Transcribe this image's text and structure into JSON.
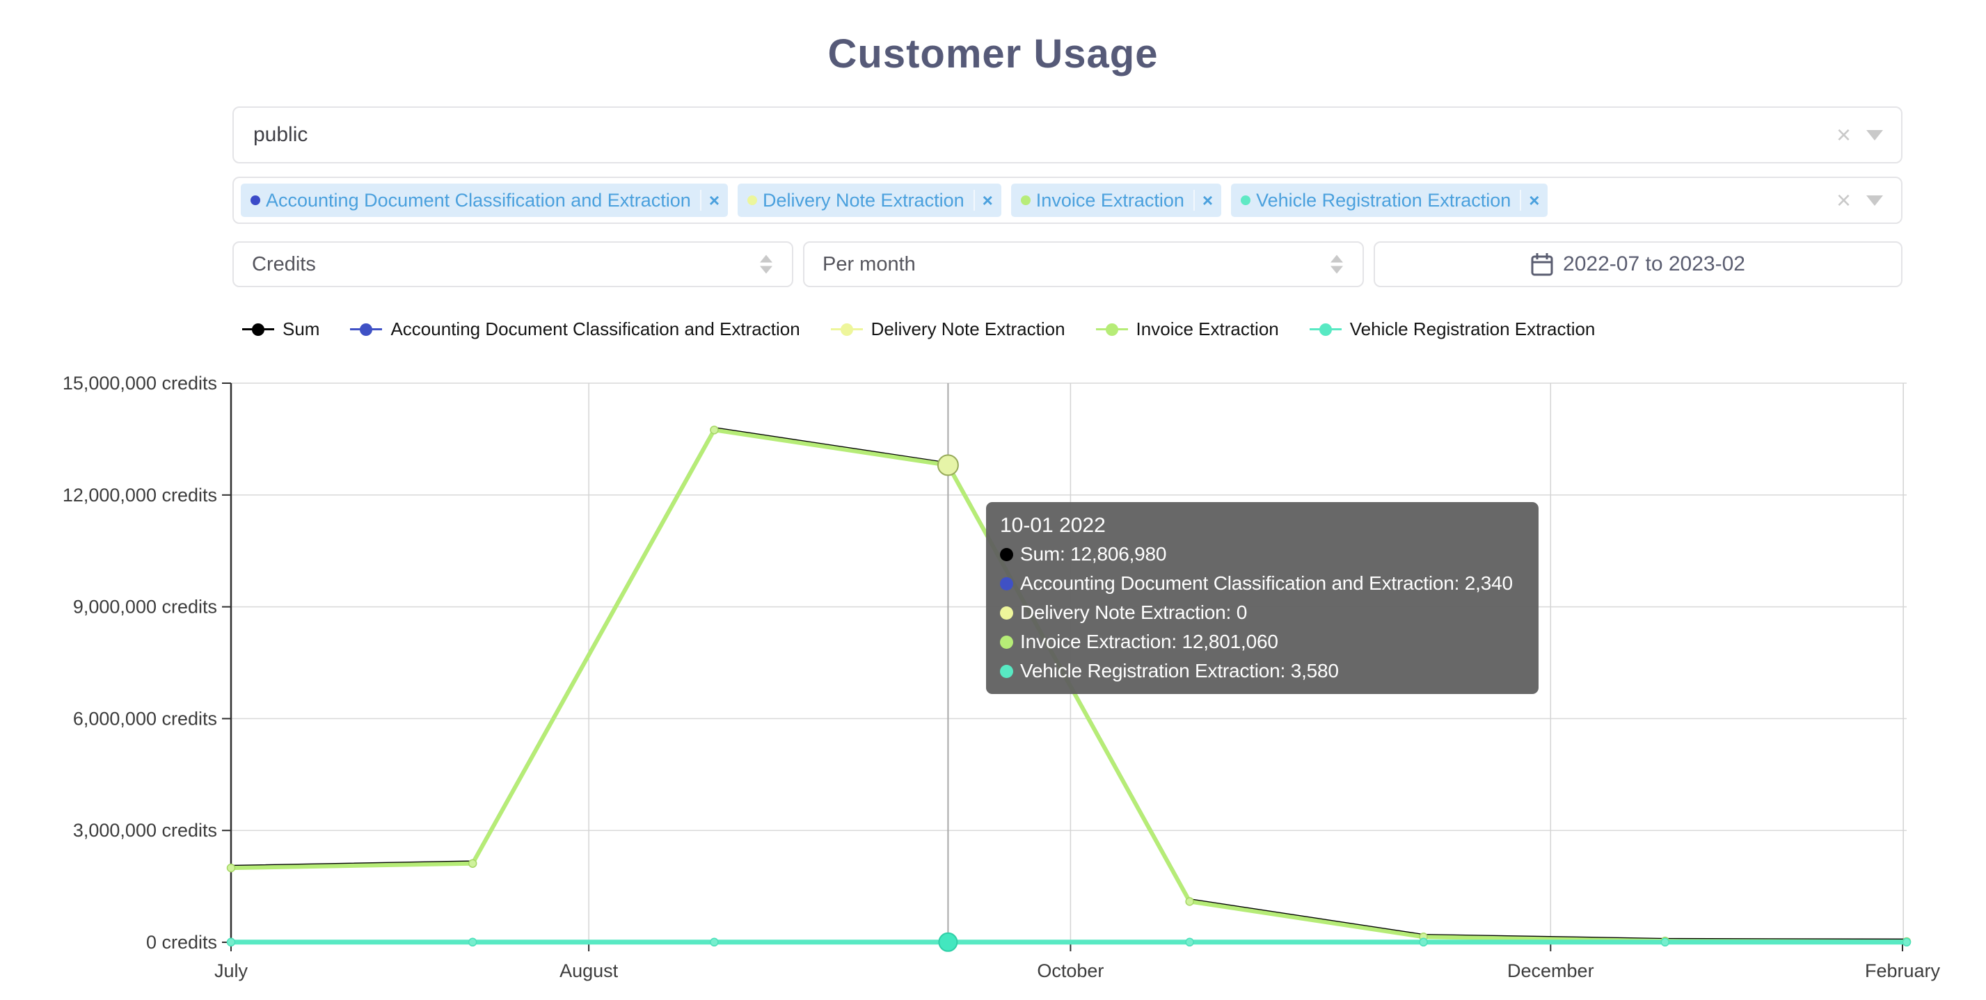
{
  "page": {
    "title": "Customer Usage"
  },
  "ui": {
    "clear_icon": "×",
    "remove_icon": "×"
  },
  "filters": {
    "customer": {
      "value": "public"
    },
    "products": {
      "items": [
        {
          "label": "Accounting Document Classification and Extraction",
          "dot_color": "#3b4bc8"
        },
        {
          "label": "Delivery Note Extraction",
          "dot_color": "#ecf69c"
        },
        {
          "label": "Invoice Extraction",
          "dot_color": "#b7ec79"
        },
        {
          "label": "Vehicle Registration Extraction",
          "dot_color": "#5fe9c4"
        }
      ]
    },
    "metric": {
      "value": "Credits"
    },
    "interval": {
      "value": "Per month"
    },
    "date_range": {
      "value": "2022-07 to 2023-02"
    }
  },
  "legend": {
    "items": [
      {
        "label": "Sum",
        "color": "#000000"
      },
      {
        "label": "Accounting Document Classification and Extraction",
        "color": "#3f51c5"
      },
      {
        "label": "Delivery Note Extraction",
        "color": "#eef69b"
      },
      {
        "label": "Invoice Extraction",
        "color": "#b6ec77"
      },
      {
        "label": "Vehicle Registration Extraction",
        "color": "#58e9c3"
      }
    ]
  },
  "chart_data": {
    "type": "line",
    "x": [
      "2022-07-01",
      "2022-08-01",
      "2022-09-01",
      "2022-10-01",
      "2022-11-01",
      "2022-12-01",
      "2023-01-01",
      "2023-02-01"
    ],
    "x_axis_tick_labels": [
      "July",
      "August",
      "October",
      "December",
      "February"
    ],
    "ylim": [
      0,
      15000000
    ],
    "ylabel_suffix": "credits",
    "y_ticks": [
      {
        "value": 15000000,
        "label": "15,000,000 credits"
      },
      {
        "value": 12000000,
        "label": "12,000,000 credits"
      },
      {
        "value": 9000000,
        "label": "9,000,000 credits"
      },
      {
        "value": 6000000,
        "label": "6,000,000 credits"
      },
      {
        "value": 3000000,
        "label": "3,000,000 credits"
      },
      {
        "value": 0,
        "label": "0 credits"
      }
    ],
    "grid": true,
    "legend_position": "top",
    "highlight_index": 3,
    "series": [
      {
        "name": "Sum",
        "color": "#000000",
        "values": [
          2000000,
          2120000,
          13750000,
          12806980,
          1100000,
          150000,
          40000,
          25000
        ]
      },
      {
        "name": "Accounting Document Classification and Extraction",
        "color": "#3f51c5",
        "values": [
          2300,
          2300,
          2300,
          2340,
          2300,
          2300,
          2300,
          2300
        ]
      },
      {
        "name": "Delivery Note Extraction",
        "color": "#eef69b",
        "values": [
          0,
          0,
          0,
          0,
          0,
          0,
          0,
          0
        ]
      },
      {
        "name": "Invoice Extraction",
        "color": "#b6ec77",
        "values": [
          1994000,
          2114000,
          13744000,
          12801060,
          1094000,
          144000,
          34000,
          19000
        ]
      },
      {
        "name": "Vehicle Registration Extraction",
        "color": "#58e9c3",
        "values": [
          3600,
          3600,
          3600,
          3580,
          3600,
          3600,
          3600,
          3600
        ]
      }
    ]
  },
  "tooltip": {
    "title": "10-01 2022",
    "rows": [
      {
        "text": "Sum: 12,806,980",
        "color": "#000000"
      },
      {
        "text": "Accounting Document Classification and Extraction: 2,340",
        "color": "#3f51c5"
      },
      {
        "text": "Delivery Note Extraction: 0",
        "color": "#eef69b"
      },
      {
        "text": "Invoice Extraction: 12,801,060",
        "color": "#b6ec77"
      },
      {
        "text": "Vehicle Registration Extraction: 3,580",
        "color": "#58e9c3"
      }
    ]
  }
}
